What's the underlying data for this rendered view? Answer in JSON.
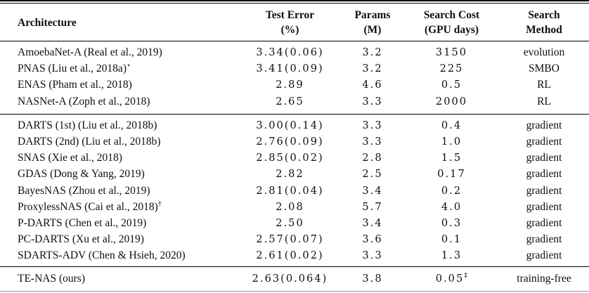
{
  "colors": {
    "background": "#ffffff",
    "text": "#0f0f0f",
    "rule": "#000000",
    "bottom_rule": "#9a9a9a"
  },
  "table": {
    "columns": [
      {
        "label": "Architecture",
        "sublabel": ""
      },
      {
        "label": "Test Error",
        "sublabel": "(%)"
      },
      {
        "label": "Params",
        "sublabel": "(M)"
      },
      {
        "label": "Search Cost",
        "sublabel": "(GPU days)"
      },
      {
        "label": "Search",
        "sublabel": "Method"
      }
    ],
    "groups": [
      {
        "rows": [
          {
            "architecture": "AmoebaNet-A (Real et al., 2019)",
            "arch_sup": "",
            "test_error": "3.34(0.06)",
            "params": "3.2",
            "search_cost": "3150",
            "cost_sup": "",
            "method": "evolution"
          },
          {
            "architecture": "PNAS (Liu et al., 2018a)",
            "arch_sup": "⋆",
            "test_error": "3.41(0.09)",
            "params": "3.2",
            "search_cost": "225",
            "cost_sup": "",
            "method": "SMBO"
          },
          {
            "architecture": "ENAS (Pham et al., 2018)",
            "arch_sup": "",
            "test_error": "2.89",
            "params": "4.6",
            "search_cost": "0.5",
            "cost_sup": "",
            "method": "RL"
          },
          {
            "architecture": "NASNet-A (Zoph et al., 2018)",
            "arch_sup": "",
            "test_error": "2.65",
            "params": "3.3",
            "search_cost": "2000",
            "cost_sup": "",
            "method": "RL"
          }
        ]
      },
      {
        "rows": [
          {
            "architecture": "DARTS (1st) (Liu et al., 2018b)",
            "arch_sup": "",
            "test_error": "3.00(0.14)",
            "params": "3.3",
            "search_cost": "0.4",
            "cost_sup": "",
            "method": "gradient"
          },
          {
            "architecture": "DARTS (2nd) (Liu et al., 2018b)",
            "arch_sup": "",
            "test_error": "2.76(0.09)",
            "params": "3.3",
            "search_cost": "1.0",
            "cost_sup": "",
            "method": "gradient"
          },
          {
            "architecture": "SNAS (Xie et al., 2018)",
            "arch_sup": "",
            "test_error": "2.85(0.02)",
            "params": "2.8",
            "search_cost": "1.5",
            "cost_sup": "",
            "method": "gradient"
          },
          {
            "architecture": "GDAS (Dong & Yang, 2019)",
            "arch_sup": "",
            "test_error": "2.82",
            "params": "2.5",
            "search_cost": "0.17",
            "cost_sup": "",
            "method": "gradient"
          },
          {
            "architecture": "BayesNAS (Zhou et al., 2019)",
            "arch_sup": "",
            "test_error": "2.81(0.04)",
            "params": "3.4",
            "search_cost": "0.2",
            "cost_sup": "",
            "method": "gradient"
          },
          {
            "architecture": "ProxylessNAS (Cai et al., 2018)",
            "arch_sup": "†",
            "test_error": "2.08",
            "params": "5.7",
            "search_cost": "4.0",
            "cost_sup": "",
            "method": "gradient"
          },
          {
            "architecture": "P-DARTS (Chen et al., 2019)",
            "arch_sup": "",
            "test_error": "2.50",
            "params": "3.4",
            "search_cost": "0.3",
            "cost_sup": "",
            "method": "gradient"
          },
          {
            "architecture": "PC-DARTS (Xu et al., 2019)",
            "arch_sup": "",
            "test_error": "2.57(0.07)",
            "params": "3.6",
            "search_cost": "0.1",
            "cost_sup": "",
            "method": "gradient"
          },
          {
            "architecture": "SDARTS-ADV (Chen & Hsieh, 2020)",
            "arch_sup": "",
            "test_error": "2.61(0.02)",
            "params": "3.3",
            "search_cost": "1.3",
            "cost_sup": "",
            "method": "gradient"
          }
        ]
      },
      {
        "rows": [
          {
            "architecture": "TE-NAS (ours)",
            "arch_sup": "",
            "test_error": "2.63(0.064)",
            "params": "3.8",
            "search_cost": "0.05",
            "cost_sup": "‡",
            "method": "training-free"
          }
        ]
      }
    ]
  }
}
